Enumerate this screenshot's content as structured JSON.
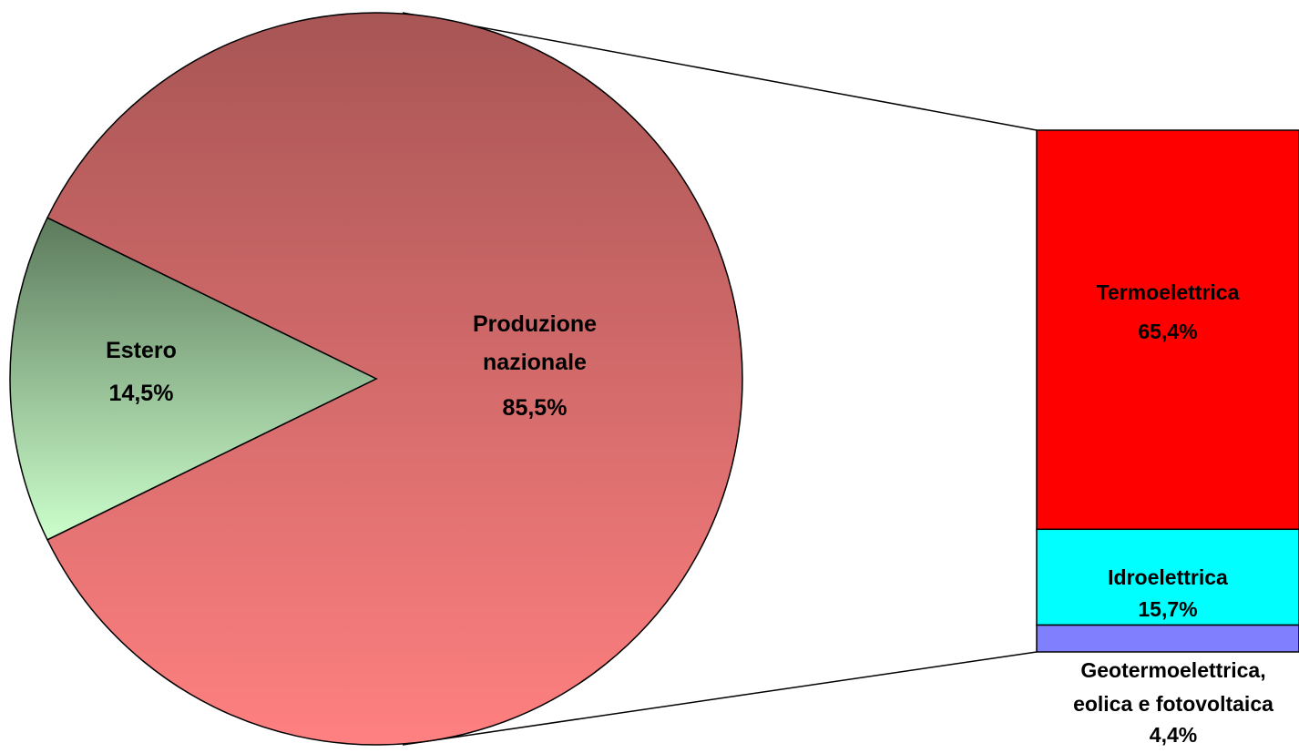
{
  "chart_data": {
    "type": "bar-of-pie",
    "pie": {
      "slices": [
        {
          "label_lines": [
            "Produzione",
            "nazionale"
          ],
          "value": 85.5,
          "value_label": "85,5%",
          "color_top": "#a85555",
          "color_bottom": "#ff8080"
        },
        {
          "label_lines": [
            "Estero"
          ],
          "value": 14.5,
          "value_label": "14,5%",
          "color_top": "#5c7a5c",
          "color_bottom": "#ccffcc"
        }
      ]
    },
    "bar": {
      "parent_slice": "Produzione nazionale",
      "segments": [
        {
          "label_lines": [
            "Termoelettrica"
          ],
          "value": 65.4,
          "value_label": "65,4%",
          "color": "#ff0000"
        },
        {
          "label_lines": [
            "Idroelettrica"
          ],
          "value": 15.7,
          "value_label": "15,7%",
          "color": "#00ffff"
        },
        {
          "label_lines": [
            "Geotermoelettrica,",
            "eolica e fotovoltaica"
          ],
          "value": 4.4,
          "value_label": "4,4%",
          "color": "#8080ff"
        }
      ]
    }
  }
}
